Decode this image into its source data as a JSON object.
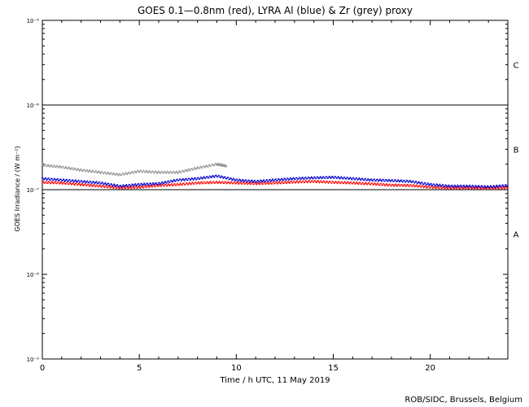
{
  "chart_data": {
    "type": "scatter",
    "title": "GOES 0.1—0.8nm (red), LYRA Al (blue) & Zr (grey) proxy",
    "xlabel": "Time / h UTC, 11 May 2019",
    "ylabel": "GOES Irradiance / (W m⁻²)",
    "credit": "ROB/SIDC, Brussels, Belgium",
    "xlim": [
      0,
      24
    ],
    "ylim": [
      1e-09,
      1e-05
    ],
    "yscale": "log",
    "x_ticks": [
      0,
      5,
      10,
      15,
      20
    ],
    "x_tick_labels": [
      "0",
      "5",
      "10",
      "15",
      "20"
    ],
    "y_ticks": [
      1e-09,
      1e-08,
      1e-07,
      1e-06,
      1e-05
    ],
    "y_tick_labels": [
      "10⁻⁹",
      "10⁻⁸",
      "10⁻⁷",
      "10⁻⁶",
      "10⁻⁵"
    ],
    "flare_class_thresholds": [
      1e-07,
      1e-06
    ],
    "flare_classes": [
      {
        "label": "A",
        "y": 3e-08
      },
      {
        "label": "B",
        "y": 3e-07
      },
      {
        "label": "C",
        "y": 3e-06
      }
    ],
    "series": [
      {
        "color": "#ff0000",
        "x": [
          0,
          1,
          2,
          3,
          4,
          5,
          6,
          7,
          8,
          9,
          10,
          11,
          12,
          13,
          14,
          15,
          16,
          17,
          18,
          19,
          20,
          21,
          22,
          23,
          24
        ],
        "values": [
          1.22e-07,
          1.2e-07,
          1.15e-07,
          1.1e-07,
          1.05e-07,
          1.07e-07,
          1.12e-07,
          1.15e-07,
          1.2e-07,
          1.22e-07,
          1.2e-07,
          1.18e-07,
          1.2e-07,
          1.23e-07,
          1.25e-07,
          1.22e-07,
          1.2e-07,
          1.17e-07,
          1.13e-07,
          1.12e-07,
          1.07e-07,
          1.05e-07,
          1.05e-07,
          1.04e-07,
          1.06e-07
        ]
      },
      {
        "color": "#0000cc",
        "x": [
          0,
          1,
          2,
          3,
          4,
          5,
          6,
          7,
          8,
          9,
          10,
          11,
          12,
          13,
          14,
          15,
          16,
          17,
          18,
          19,
          20,
          21,
          22,
          23,
          24
        ],
        "values": [
          1.35e-07,
          1.3e-07,
          1.25e-07,
          1.2e-07,
          1.1e-07,
          1.15e-07,
          1.18e-07,
          1.3e-07,
          1.35e-07,
          1.45e-07,
          1.3e-07,
          1.25e-07,
          1.3e-07,
          1.35e-07,
          1.38e-07,
          1.4e-07,
          1.35e-07,
          1.3e-07,
          1.28e-07,
          1.25e-07,
          1.15e-07,
          1.1e-07,
          1.1e-07,
          1.08e-07,
          1.12e-07
        ]
      },
      {
        "color": "#909090",
        "x": [
          0,
          1,
          2,
          3,
          4,
          5,
          6,
          7,
          8,
          9,
          9.5
        ],
        "values": [
          1.95e-07,
          1.85e-07,
          1.7e-07,
          1.6e-07,
          1.5e-07,
          1.65e-07,
          1.6e-07,
          1.6e-07,
          1.8e-07,
          2e-07,
          1.9e-07
        ]
      }
    ]
  }
}
